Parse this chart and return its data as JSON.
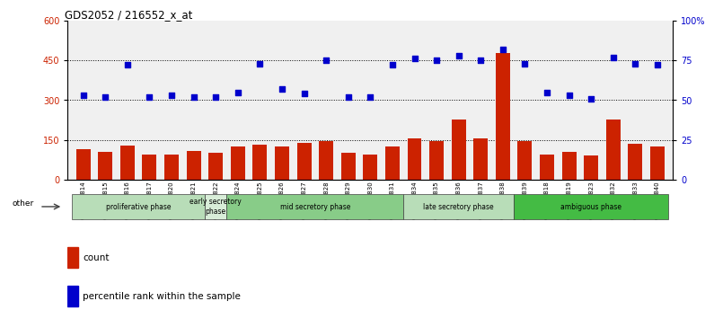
{
  "title": "GDS2052 / 216552_x_at",
  "samples": [
    "GSM109814",
    "GSM109815",
    "GSM109816",
    "GSM109817",
    "GSM109820",
    "GSM109821",
    "GSM109822",
    "GSM109824",
    "GSM109825",
    "GSM109826",
    "GSM109827",
    "GSM109828",
    "GSM109829",
    "GSM109830",
    "GSM109831",
    "GSM109834",
    "GSM109835",
    "GSM109836",
    "GSM109837",
    "GSM109838",
    "GSM109839",
    "GSM109818",
    "GSM109819",
    "GSM109823",
    "GSM109832",
    "GSM109833",
    "GSM109840"
  ],
  "counts": [
    115,
    105,
    130,
    95,
    95,
    108,
    100,
    125,
    133,
    125,
    140,
    145,
    100,
    95,
    125,
    155,
    145,
    225,
    155,
    478,
    145,
    95,
    104,
    90,
    225,
    135,
    125
  ],
  "percentile": [
    53,
    52,
    72,
    52,
    53,
    52,
    52,
    55,
    73,
    57,
    54,
    75,
    52,
    52,
    72,
    76,
    75,
    78,
    75,
    82,
    73,
    55,
    53,
    51,
    77,
    73,
    72
  ],
  "phases": [
    {
      "label": "proliferative phase",
      "start": 0,
      "end": 6,
      "color": "#b8ddb8"
    },
    {
      "label": "early secretory\nphase",
      "start": 6,
      "end": 7,
      "color": "#d8edd8"
    },
    {
      "label": "mid secretory phase",
      "start": 7,
      "end": 15,
      "color": "#88cc88"
    },
    {
      "label": "late secretory phase",
      "start": 15,
      "end": 20,
      "color": "#b8ddb8"
    },
    {
      "label": "ambiguous phase",
      "start": 20,
      "end": 27,
      "color": "#44bb44"
    }
  ],
  "bar_color": "#cc2200",
  "dot_color": "#0000cc",
  "ylim_left": [
    0,
    600
  ],
  "ylim_right": [
    0,
    100
  ],
  "yticks_left": [
    0,
    150,
    300,
    450,
    600
  ],
  "yticks_right": [
    0,
    25,
    50,
    75,
    100
  ],
  "ytick_labels_right": [
    "0",
    "25",
    "50",
    "75",
    "100%"
  ],
  "plot_bg": "#f0f0f0",
  "fig_bg": "#ffffff"
}
